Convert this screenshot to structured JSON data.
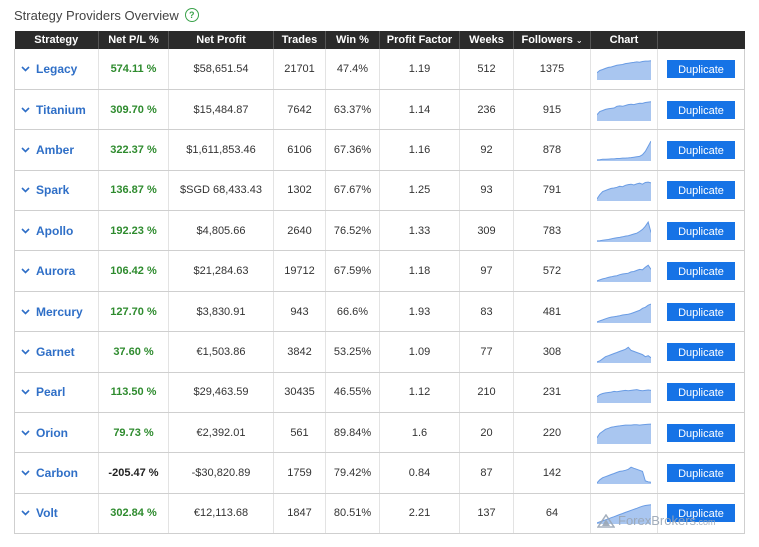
{
  "header": {
    "title": "Strategy Providers Overview",
    "help_glyph": "?"
  },
  "columns": [
    "Strategy",
    "Net P/L %",
    "Net Profit",
    "Trades",
    "Win %",
    "Profit Factor",
    "Weeks",
    "Followers",
    "Chart",
    ""
  ],
  "sort_indicator": "⌄",
  "button_label": "Duplicate",
  "colors": {
    "positive": "#2e8b2e",
    "negative": "#222222",
    "link": "#2f6fc7",
    "button": "#1673e6",
    "chart_fill": "#a9c6f0",
    "chart_line": "#6a9ce4"
  },
  "rows": [
    {
      "name": "Legacy",
      "pl": "574.11 %",
      "pl_sign": "pos",
      "profit": "$58,651.54",
      "trades": "21701",
      "win": "47.4%",
      "pf": "1.19",
      "weeks": "512",
      "followers": "1375",
      "spark": [
        0.35,
        0.45,
        0.5,
        0.55,
        0.6,
        0.62,
        0.66,
        0.7,
        0.72,
        0.74,
        0.78,
        0.8,
        0.82,
        0.84,
        0.86,
        0.85,
        0.88,
        0.9,
        0.9,
        0.92
      ]
    },
    {
      "name": "Titanium",
      "pl": "309.70 %",
      "pl_sign": "pos",
      "profit": "$15,484.87",
      "trades": "7642",
      "win": "63.37%",
      "pf": "1.14",
      "weeks": "236",
      "followers": "915",
      "spark": [
        0.3,
        0.45,
        0.5,
        0.55,
        0.58,
        0.6,
        0.62,
        0.7,
        0.72,
        0.7,
        0.74,
        0.78,
        0.8,
        0.78,
        0.82,
        0.85,
        0.84,
        0.88,
        0.9,
        0.92
      ]
    },
    {
      "name": "Amber",
      "pl": "322.37 %",
      "pl_sign": "pos",
      "profit": "$1,611,853.46",
      "trades": "6106",
      "win": "67.36%",
      "pf": "1.16",
      "weeks": "92",
      "followers": "878",
      "spark": [
        0.05,
        0.06,
        0.08,
        0.08,
        0.09,
        0.1,
        0.1,
        0.12,
        0.12,
        0.14,
        0.14,
        0.15,
        0.16,
        0.18,
        0.2,
        0.22,
        0.3,
        0.45,
        0.7,
        0.95
      ]
    },
    {
      "name": "Spark",
      "pl": "136.87 %",
      "pl_sign": "pos",
      "profit": "$SGD 68,433.43",
      "trades": "1302",
      "win": "67.67%",
      "pf": "1.25",
      "weeks": "93",
      "followers": "791",
      "spark": [
        0.1,
        0.3,
        0.45,
        0.5,
        0.55,
        0.6,
        0.62,
        0.65,
        0.7,
        0.68,
        0.75,
        0.78,
        0.8,
        0.76,
        0.82,
        0.85,
        0.8,
        0.88,
        0.9,
        0.86
      ]
    },
    {
      "name": "Apollo",
      "pl": "192.23 %",
      "pl_sign": "pos",
      "profit": "$4,805.66",
      "trades": "2640",
      "win": "76.52%",
      "pf": "1.33",
      "weeks": "309",
      "followers": "783",
      "spark": [
        0.05,
        0.06,
        0.08,
        0.1,
        0.12,
        0.15,
        0.18,
        0.2,
        0.22,
        0.25,
        0.28,
        0.3,
        0.34,
        0.38,
        0.42,
        0.5,
        0.6,
        0.75,
        0.95,
        0.45
      ]
    },
    {
      "name": "Aurora",
      "pl": "106.42 %",
      "pl_sign": "pos",
      "profit": "$21,284.63",
      "trades": "19712",
      "win": "67.59%",
      "pf": "1.18",
      "weeks": "97",
      "followers": "572",
      "spark": [
        0.05,
        0.1,
        0.15,
        0.18,
        0.22,
        0.25,
        0.28,
        0.3,
        0.35,
        0.38,
        0.4,
        0.42,
        0.48,
        0.5,
        0.55,
        0.6,
        0.58,
        0.7,
        0.8,
        0.6
      ]
    },
    {
      "name": "Mercury",
      "pl": "127.70 %",
      "pl_sign": "pos",
      "profit": "$3,830.91",
      "trades": "943",
      "win": "66.6%",
      "pf": "1.93",
      "weeks": "83",
      "followers": "481",
      "spark": [
        0.05,
        0.1,
        0.15,
        0.2,
        0.25,
        0.28,
        0.3,
        0.32,
        0.35,
        0.38,
        0.4,
        0.42,
        0.45,
        0.5,
        0.55,
        0.6,
        0.7,
        0.75,
        0.85,
        0.9
      ]
    },
    {
      "name": "Garnet",
      "pl": "37.60 %",
      "pl_sign": "pos",
      "profit": "€1,503.86",
      "trades": "3842",
      "win": "53.25%",
      "pf": "1.09",
      "weeks": "77",
      "followers": "308",
      "spark": [
        0.05,
        0.1,
        0.2,
        0.3,
        0.35,
        0.4,
        0.45,
        0.5,
        0.55,
        0.6,
        0.65,
        0.75,
        0.6,
        0.55,
        0.5,
        0.45,
        0.4,
        0.3,
        0.35,
        0.25
      ]
    },
    {
      "name": "Pearl",
      "pl": "113.50 %",
      "pl_sign": "pos",
      "profit": "$29,463.59",
      "trades": "30435",
      "win": "46.55%",
      "pf": "1.12",
      "weeks": "210",
      "followers": "231",
      "spark": [
        0.3,
        0.4,
        0.45,
        0.48,
        0.5,
        0.52,
        0.55,
        0.54,
        0.56,
        0.58,
        0.6,
        0.58,
        0.6,
        0.62,
        0.64,
        0.6,
        0.58,
        0.6,
        0.62,
        0.6
      ]
    },
    {
      "name": "Orion",
      "pl": "79.73 %",
      "pl_sign": "pos",
      "profit": "€2,392.01",
      "trades": "561",
      "win": "89.84%",
      "pf": "1.6",
      "weeks": "20",
      "followers": "220",
      "spark": [
        0.3,
        0.5,
        0.6,
        0.7,
        0.75,
        0.8,
        0.82,
        0.85,
        0.86,
        0.88,
        0.9,
        0.9,
        0.9,
        0.92,
        0.92,
        0.9,
        0.92,
        0.93,
        0.94,
        0.95
      ]
    },
    {
      "name": "Carbon",
      "pl": "-205.47 %",
      "pl_sign": "neg",
      "profit": "-$30,820.89",
      "trades": "1759",
      "win": "79.42%",
      "pf": "0.84",
      "weeks": "87",
      "followers": "142",
      "spark": [
        0.05,
        0.2,
        0.3,
        0.35,
        0.4,
        0.45,
        0.5,
        0.55,
        0.6,
        0.62,
        0.65,
        0.7,
        0.8,
        0.75,
        0.7,
        0.65,
        0.6,
        0.15,
        0.1,
        0.08
      ]
    },
    {
      "name": "Volt",
      "pl": "302.84 %",
      "pl_sign": "pos",
      "profit": "€12,113.68",
      "trades": "1847",
      "win": "80.51%",
      "pf": "2.21",
      "weeks": "137",
      "followers": "64",
      "spark": [
        0.05,
        0.1,
        0.15,
        0.2,
        0.25,
        0.3,
        0.35,
        0.4,
        0.45,
        0.5,
        0.55,
        0.6,
        0.65,
        0.7,
        0.75,
        0.8,
        0.85,
        0.88,
        0.9,
        0.92
      ]
    }
  ],
  "watermark": {
    "text": "ForexBrokers",
    "suffix": ".com"
  }
}
